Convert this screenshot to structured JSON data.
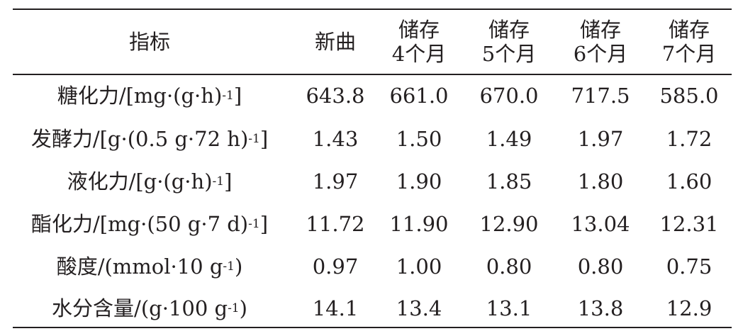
{
  "table": {
    "headers": [
      {
        "line1": "指标",
        "line2": ""
      },
      {
        "line1": "新曲",
        "line2": ""
      },
      {
        "line1": "储存",
        "line2": "4个月"
      },
      {
        "line1": "储存",
        "line2": "5个月"
      },
      {
        "line1": "储存",
        "line2": "6个月"
      },
      {
        "line1": "储存",
        "line2": "7个月"
      }
    ],
    "rows": [
      {
        "label": "糖化力/[mg·(g·h)",
        "sup": "-1",
        "tail": "]",
        "values": [
          "643.8",
          "661.0",
          "670.0",
          "717.5",
          "585.0"
        ]
      },
      {
        "label": "发酵力/[g·(0.5 g·72 h)",
        "sup": "-1",
        "tail": "]",
        "values": [
          "1.43",
          "1.50",
          "1.49",
          "1.97",
          "1.72"
        ]
      },
      {
        "label": "液化力/[g·(g·h)",
        "sup": "-1",
        "tail": "]",
        "values": [
          "1.97",
          "1.90",
          "1.85",
          "1.80",
          "1.60"
        ]
      },
      {
        "label": "酯化力/[mg·(50 g·7 d)",
        "sup": "-1",
        "tail": "]",
        "values": [
          "11.72",
          "11.90",
          "12.90",
          "13.04",
          "12.31"
        ]
      },
      {
        "label": "酸度/(mmol·10 g",
        "sup": "-1",
        "tail": ")",
        "values": [
          "0.97",
          "1.00",
          "0.80",
          "0.80",
          "0.75"
        ]
      },
      {
        "label": "水分含量/(g·100 g",
        "sup": "-1",
        "tail": ")",
        "values": [
          "14.1",
          "13.4",
          "13.1",
          "13.8",
          "12.9"
        ]
      }
    ]
  }
}
